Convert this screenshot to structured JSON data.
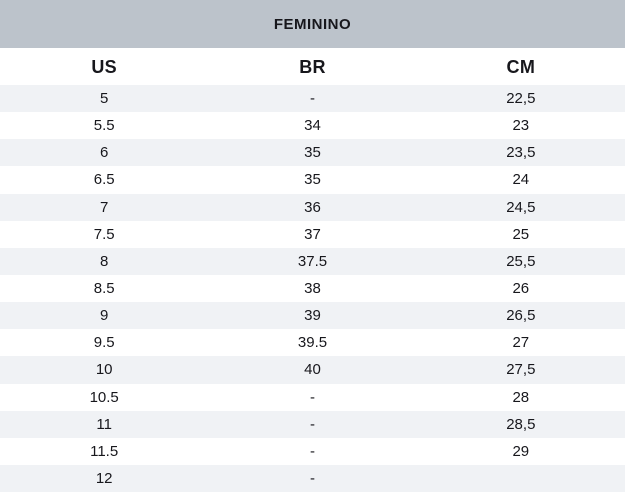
{
  "table": {
    "title": "FEMININO",
    "columns": [
      "US",
      "BR",
      "CM"
    ],
    "rows": [
      [
        "5",
        "-",
        "22,5"
      ],
      [
        "5.5",
        "34",
        "23"
      ],
      [
        "6",
        "35",
        "23,5"
      ],
      [
        "6.5",
        "35",
        "24"
      ],
      [
        "7",
        "36",
        "24,5"
      ],
      [
        "7.5",
        "37",
        "25"
      ],
      [
        "8",
        "37.5",
        "25,5"
      ],
      [
        "8.5",
        "38",
        "26"
      ],
      [
        "9",
        "39",
        "26,5"
      ],
      [
        "9.5",
        "39.5",
        "27"
      ],
      [
        "10",
        "40",
        "27,5"
      ],
      [
        "10.5",
        "-",
        "28"
      ],
      [
        "11",
        "-",
        "28,5"
      ],
      [
        "11.5",
        "-",
        "29"
      ],
      [
        "12",
        "-",
        ""
      ]
    ],
    "colors": {
      "header_bg": "#bcc3cb",
      "stripe_bg": "#f0f2f5",
      "row_bg": "#ffffff",
      "text": "#17171c"
    }
  }
}
